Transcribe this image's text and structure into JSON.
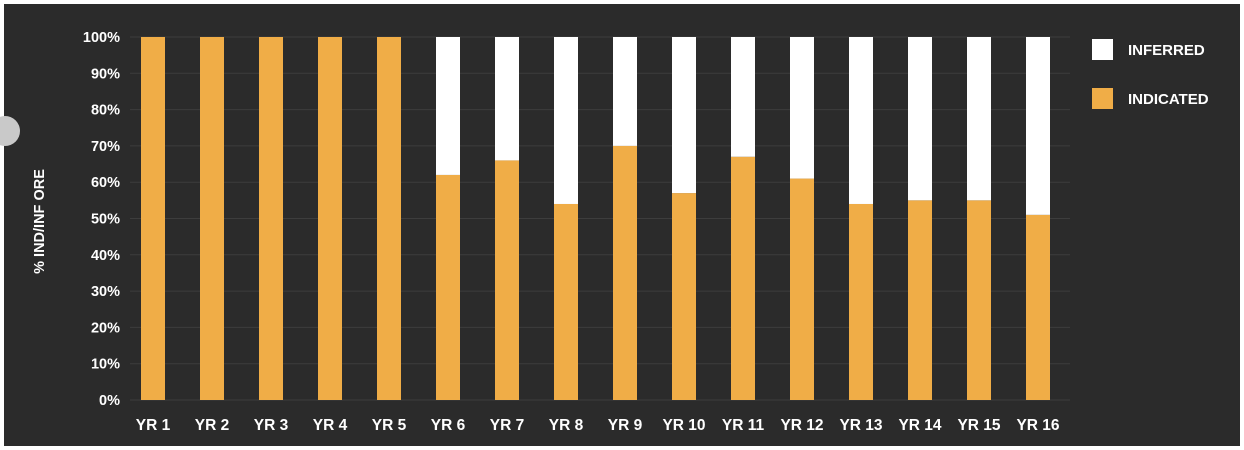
{
  "colors": {
    "background": "#2b2b2b",
    "indicated": "#f0ad47",
    "inferred": "#ffffff",
    "grid": "#3d3d3d",
    "text": "#ffffff"
  },
  "chart_data": {
    "type": "bar",
    "stacked": true,
    "title": "",
    "xlabel": "",
    "ylabel": "% IND/INF ORE",
    "ylim": [
      0,
      100
    ],
    "yticks": [
      "0%",
      "10%",
      "20%",
      "30%",
      "40%",
      "50%",
      "60%",
      "70%",
      "80%",
      "90%",
      "100%"
    ],
    "categories": [
      "YR 1",
      "YR 2",
      "YR 3",
      "YR 4",
      "YR 5",
      "YR 6",
      "YR 7",
      "YR 8",
      "YR 9",
      "YR 10",
      "YR 11",
      "YR 12",
      "YR 13",
      "YR 14",
      "YR 15",
      "YR 16"
    ],
    "series": [
      {
        "name": "INDICATED",
        "color": "#f0ad47",
        "values": [
          100,
          100,
          100,
          100,
          100,
          62,
          66,
          54,
          70,
          57,
          67,
          61,
          54,
          55,
          55,
          51
        ]
      },
      {
        "name": "INFERRED",
        "color": "#ffffff",
        "values": [
          0,
          0,
          0,
          0,
          0,
          38,
          34,
          46,
          30,
          43,
          33,
          39,
          46,
          45,
          45,
          49
        ]
      }
    ],
    "legend": {
      "placement": "top-right",
      "order": [
        "INFERRED",
        "INDICATED"
      ]
    },
    "grid": true
  }
}
